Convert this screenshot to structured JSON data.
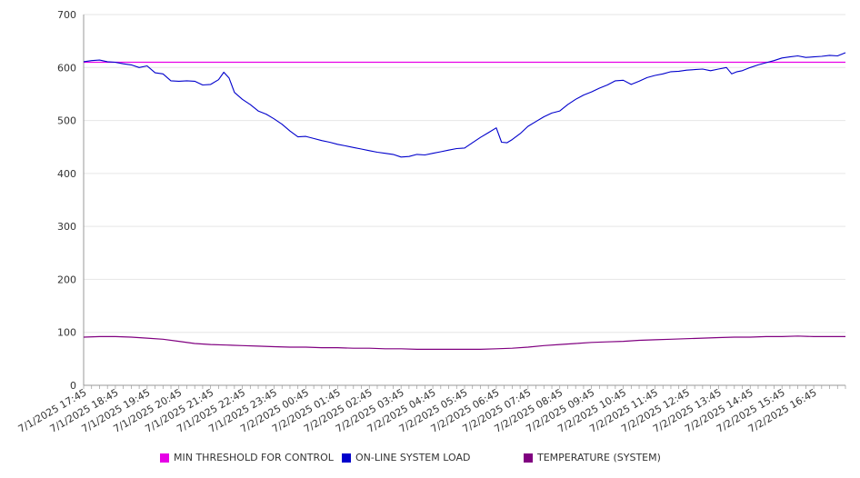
{
  "chart_data": {
    "type": "line",
    "xlabel": "",
    "ylabel": "",
    "ylim": [
      0,
      700
    ],
    "y_ticks": [
      0,
      100,
      200,
      300,
      400,
      500,
      600,
      700
    ],
    "x_tick_labels": [
      "7/1/2025 17:45",
      "7/1/2025 18:45",
      "7/1/2025 19:45",
      "7/1/2025 20:45",
      "7/1/2025 21:45",
      "7/1/2025 22:45",
      "7/1/2025 23:45",
      "7/2/2025 00:45",
      "7/2/2025 01:45",
      "7/2/2025 02:45",
      "7/2/2025 03:45",
      "7/2/2025 04:45",
      "7/2/2025 05:45",
      "7/2/2025 06:45",
      "7/2/2025 07:45",
      "7/2/2025 08:45",
      "7/2/2025 09:45",
      "7/2/2025 10:45",
      "7/2/2025 11:45",
      "7/2/2025 12:45",
      "7/2/2025 13:45",
      "7/2/2025 14:45",
      "7/2/2025 15:45",
      "7/2/2025 16:45"
    ],
    "x_range": [
      "7/1/2025 17:45",
      "7/2/2025 17:45"
    ],
    "grid": "horizontal",
    "legend_position": "bottom",
    "series": [
      {
        "name": "MIN THRESHOLD FOR CONTROL",
        "color": "#e600e6",
        "points": [
          [
            "7/1/2025 17:45",
            610
          ],
          [
            "7/2/2025 17:45",
            610
          ]
        ]
      },
      {
        "name": "ON-LINE SYSTEM LOAD",
        "color": "#0000cc",
        "points": [
          [
            "7/1/2025 17:45",
            611
          ],
          [
            "7/1/2025 18:00",
            613
          ],
          [
            "7/1/2025 18:15",
            614
          ],
          [
            "7/1/2025 18:30",
            611
          ],
          [
            "7/1/2025 18:45",
            610
          ],
          [
            "7/1/2025 19:00",
            607
          ],
          [
            "7/1/2025 19:15",
            605
          ],
          [
            "7/1/2025 19:30",
            600
          ],
          [
            "7/1/2025 19:45",
            603
          ],
          [
            "7/1/2025 20:00",
            590
          ],
          [
            "7/1/2025 20:15",
            588
          ],
          [
            "7/1/2025 20:30",
            575
          ],
          [
            "7/1/2025 20:45",
            574
          ],
          [
            "7/1/2025 21:00",
            575
          ],
          [
            "7/1/2025 21:15",
            574
          ],
          [
            "7/1/2025 21:30",
            567
          ],
          [
            "7/1/2025 21:45",
            568
          ],
          [
            "7/1/2025 22:00",
            577
          ],
          [
            "7/1/2025 22:10",
            591
          ],
          [
            "7/1/2025 22:20",
            580
          ],
          [
            "7/1/2025 22:30",
            553
          ],
          [
            "7/1/2025 22:45",
            540
          ],
          [
            "7/1/2025 23:00",
            530
          ],
          [
            "7/1/2025 23:15",
            518
          ],
          [
            "7/1/2025 23:30",
            512
          ],
          [
            "7/1/2025 23:45",
            503
          ],
          [
            "7/2/2025 00:00",
            493
          ],
          [
            "7/2/2025 00:15",
            480
          ],
          [
            "7/2/2025 00:30",
            469
          ],
          [
            "7/2/2025 00:45",
            470
          ],
          [
            "7/2/2025 01:00",
            466
          ],
          [
            "7/2/2025 01:15",
            462
          ],
          [
            "7/2/2025 01:30",
            459
          ],
          [
            "7/2/2025 01:45",
            455
          ],
          [
            "7/2/2025 02:00",
            452
          ],
          [
            "7/2/2025 02:15",
            449
          ],
          [
            "7/2/2025 02:30",
            446
          ],
          [
            "7/2/2025 02:45",
            443
          ],
          [
            "7/2/2025 03:00",
            440
          ],
          [
            "7/2/2025 03:15",
            438
          ],
          [
            "7/2/2025 03:30",
            436
          ],
          [
            "7/2/2025 03:45",
            431
          ],
          [
            "7/2/2025 04:00",
            432
          ],
          [
            "7/2/2025 04:15",
            436
          ],
          [
            "7/2/2025 04:30",
            435
          ],
          [
            "7/2/2025 04:45",
            438
          ],
          [
            "7/2/2025 05:00",
            441
          ],
          [
            "7/2/2025 05:15",
            444
          ],
          [
            "7/2/2025 05:30",
            447
          ],
          [
            "7/2/2025 05:45",
            448
          ],
          [
            "7/2/2025 06:00",
            458
          ],
          [
            "7/2/2025 06:15",
            468
          ],
          [
            "7/2/2025 06:30",
            477
          ],
          [
            "7/2/2025 06:45",
            486
          ],
          [
            "7/2/2025 06:55",
            459
          ],
          [
            "7/2/2025 07:05",
            458
          ],
          [
            "7/2/2025 07:15",
            464
          ],
          [
            "7/2/2025 07:30",
            475
          ],
          [
            "7/2/2025 07:45",
            489
          ],
          [
            "7/2/2025 08:00",
            498
          ],
          [
            "7/2/2025 08:15",
            507
          ],
          [
            "7/2/2025 08:30",
            514
          ],
          [
            "7/2/2025 08:45",
            518
          ],
          [
            "7/2/2025 09:00",
            530
          ],
          [
            "7/2/2025 09:15",
            540
          ],
          [
            "7/2/2025 09:30",
            548
          ],
          [
            "7/2/2025 09:45",
            554
          ],
          [
            "7/2/2025 10:00",
            561
          ],
          [
            "7/2/2025 10:15",
            567
          ],
          [
            "7/2/2025 10:30",
            575
          ],
          [
            "7/2/2025 10:45",
            576
          ],
          [
            "7/2/2025 11:00",
            568
          ],
          [
            "7/2/2025 11:15",
            574
          ],
          [
            "7/2/2025 11:30",
            581
          ],
          [
            "7/2/2025 11:45",
            585
          ],
          [
            "7/2/2025 12:00",
            588
          ],
          [
            "7/2/2025 12:15",
            592
          ],
          [
            "7/2/2025 12:30",
            593
          ],
          [
            "7/2/2025 12:45",
            595
          ],
          [
            "7/2/2025 13:00",
            596
          ],
          [
            "7/2/2025 13:15",
            597
          ],
          [
            "7/2/2025 13:30",
            594
          ],
          [
            "7/2/2025 13:45",
            597
          ],
          [
            "7/2/2025 14:00",
            600
          ],
          [
            "7/2/2025 14:10",
            588
          ],
          [
            "7/2/2025 14:20",
            592
          ],
          [
            "7/2/2025 14:30",
            594
          ],
          [
            "7/2/2025 14:45",
            600
          ],
          [
            "7/2/2025 15:00",
            605
          ],
          [
            "7/2/2025 15:15",
            609
          ],
          [
            "7/2/2025 15:30",
            613
          ],
          [
            "7/2/2025 15:45",
            618
          ],
          [
            "7/2/2025 16:00",
            620
          ],
          [
            "7/2/2025 16:15",
            622
          ],
          [
            "7/2/2025 16:30",
            619
          ],
          [
            "7/2/2025 16:45",
            620
          ],
          [
            "7/2/2025 17:00",
            621
          ],
          [
            "7/2/2025 17:15",
            623
          ],
          [
            "7/2/2025 17:30",
            622
          ],
          [
            "7/2/2025 17:45",
            628
          ]
        ]
      },
      {
        "name": "TEMPERATURE (SYSTEM)",
        "color": "#800080",
        "points": [
          [
            "7/1/2025 17:45",
            91
          ],
          [
            "7/1/2025 18:15",
            92
          ],
          [
            "7/1/2025 18:45",
            92
          ],
          [
            "7/1/2025 19:15",
            91
          ],
          [
            "7/1/2025 19:45",
            89
          ],
          [
            "7/1/2025 20:15",
            87
          ],
          [
            "7/1/2025 20:45",
            83
          ],
          [
            "7/1/2025 21:15",
            79
          ],
          [
            "7/1/2025 21:45",
            77
          ],
          [
            "7/1/2025 22:15",
            76
          ],
          [
            "7/1/2025 22:45",
            75
          ],
          [
            "7/1/2025 23:15",
            74
          ],
          [
            "7/1/2025 23:45",
            73
          ],
          [
            "7/2/2025 00:15",
            72
          ],
          [
            "7/2/2025 00:45",
            72
          ],
          [
            "7/2/2025 01:15",
            71
          ],
          [
            "7/2/2025 01:45",
            71
          ],
          [
            "7/2/2025 02:15",
            70
          ],
          [
            "7/2/2025 02:45",
            70
          ],
          [
            "7/2/2025 03:15",
            69
          ],
          [
            "7/2/2025 03:45",
            69
          ],
          [
            "7/2/2025 04:15",
            68
          ],
          [
            "7/2/2025 04:45",
            68
          ],
          [
            "7/2/2025 05:15",
            68
          ],
          [
            "7/2/2025 05:45",
            68
          ],
          [
            "7/2/2025 06:15",
            68
          ],
          [
            "7/2/2025 06:45",
            69
          ],
          [
            "7/2/2025 07:15",
            70
          ],
          [
            "7/2/2025 07:45",
            72
          ],
          [
            "7/2/2025 08:15",
            75
          ],
          [
            "7/2/2025 08:45",
            77
          ],
          [
            "7/2/2025 09:15",
            79
          ],
          [
            "7/2/2025 09:45",
            81
          ],
          [
            "7/2/2025 10:15",
            82
          ],
          [
            "7/2/2025 10:45",
            83
          ],
          [
            "7/2/2025 11:15",
            85
          ],
          [
            "7/2/2025 11:45",
            86
          ],
          [
            "7/2/2025 12:15",
            87
          ],
          [
            "7/2/2025 12:45",
            88
          ],
          [
            "7/2/2025 13:15",
            89
          ],
          [
            "7/2/2025 13:45",
            90
          ],
          [
            "7/2/2025 14:15",
            91
          ],
          [
            "7/2/2025 14:45",
            91
          ],
          [
            "7/2/2025 15:15",
            92
          ],
          [
            "7/2/2025 15:45",
            92
          ],
          [
            "7/2/2025 16:15",
            93
          ],
          [
            "7/2/2025 16:45",
            92
          ],
          [
            "7/2/2025 17:15",
            92
          ],
          [
            "7/2/2025 17:45",
            92
          ]
        ]
      }
    ]
  }
}
